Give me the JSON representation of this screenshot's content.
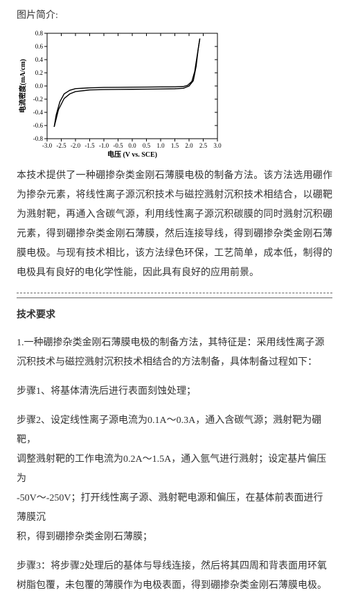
{
  "caption": "图片简介:",
  "chart": {
    "type": "line",
    "xlabel": "电压 (V vs. SCE)",
    "ylabel": "电流密度(mA/cm)",
    "xlim": [
      -3.0,
      3.0
    ],
    "ylim": [
      -0.8,
      0.8
    ],
    "xticks": [
      -3.0,
      -2.5,
      -2.0,
      -1.5,
      -1.0,
      -0.5,
      0.0,
      0.5,
      1.0,
      1.5,
      2.0,
      2.5,
      3.0
    ],
    "yticks": [
      -0.8,
      -0.6,
      -0.4,
      -0.2,
      0.0,
      0.2,
      0.4,
      0.6,
      0.8
    ],
    "background_color": "#ffffff",
    "line_color": "#000000",
    "axis_color": "#000000",
    "tick_fontsize": 9,
    "label_fontsize": 10,
    "curve_a": [
      [
        -2.75,
        -0.62
      ],
      [
        -2.6,
        -0.36
      ],
      [
        -2.4,
        -0.19
      ],
      [
        -2.2,
        -0.12
      ],
      [
        -2.0,
        -0.085
      ],
      [
        -1.5,
        -0.06
      ],
      [
        -1.0,
        -0.055
      ],
      [
        -0.5,
        -0.052
      ],
      [
        0.0,
        -0.05
      ],
      [
        0.5,
        -0.048
      ],
      [
        1.0,
        -0.045
      ],
      [
        1.5,
        -0.042
      ],
      [
        1.8,
        -0.035
      ],
      [
        2.0,
        0.0
      ],
      [
        2.15,
        0.08
      ],
      [
        2.25,
        0.3
      ],
      [
        2.32,
        0.55
      ],
      [
        2.38,
        0.72
      ]
    ],
    "curve_b": [
      [
        2.38,
        0.72
      ],
      [
        2.3,
        0.5
      ],
      [
        2.2,
        0.22
      ],
      [
        2.1,
        0.07
      ],
      [
        1.95,
        0.01
      ],
      [
        1.8,
        -0.008
      ],
      [
        1.5,
        -0.012
      ],
      [
        1.0,
        -0.014
      ],
      [
        0.5,
        -0.016
      ],
      [
        0.0,
        -0.018
      ],
      [
        -0.5,
        -0.02
      ],
      [
        -1.0,
        -0.022
      ],
      [
        -1.5,
        -0.028
      ],
      [
        -2.0,
        -0.04
      ],
      [
        -2.2,
        -0.065
      ],
      [
        -2.4,
        -0.12
      ],
      [
        -2.55,
        -0.24
      ],
      [
        -2.68,
        -0.44
      ],
      [
        -2.75,
        -0.62
      ]
    ]
  },
  "intro_paragraph": "本技术提供了一种硼掺杂类金刚石薄膜电极的制备方法。该方法选用硼作为掺杂元素，将线性离子源沉积技术与磁控溅射沉积技术相结合，以硼靶为溅射靶，再通入含碳气源，利用线性离子源沉积碳膜的同时溅射沉积硼元素，得到硼掺杂类金刚石薄膜，然后连接导线，得到硼掺杂类金刚石薄膜电极。与现有技术相比，该方法绿色环保，工艺简单，成本低，制得的电极具有良好的电化学性能，因此具有良好的应用前景。",
  "section_title": "技术要求",
  "step_intro_lines": [
    "1.一种硼掺杂类金刚石薄膜电极的制备方法，其特征是：采用线性离子源",
    "沉积技术与磁控溅射沉积技术相结合的方法制备，具体制备过程如下："
  ],
  "step1": "步骤1、将基体清洗后进行表面刻蚀处理；",
  "step2_lines": [
    "步骤2、设定线性离子源电流为0.1A～0.3A，通入含碳气源；溅射靶为硼靶，",
    "调整溅射靶的工作电流为0.2A～1.5A，通入氩气进行溅射；设定基片偏压为",
    "-50V～-250V；打开线性离子源、溅射靶电源和偏压，在基体前表面进行薄膜沉",
    "积，得到硼掺杂类金刚石薄膜；"
  ],
  "step3_lines": [
    "步骤3：将步骤2处理后的基体与导线连接，然后将其四周和背表面用环氧",
    "树脂包覆，未包覆的薄膜作为电极表面，得到硼掺杂类金刚石薄膜电极。"
  ]
}
